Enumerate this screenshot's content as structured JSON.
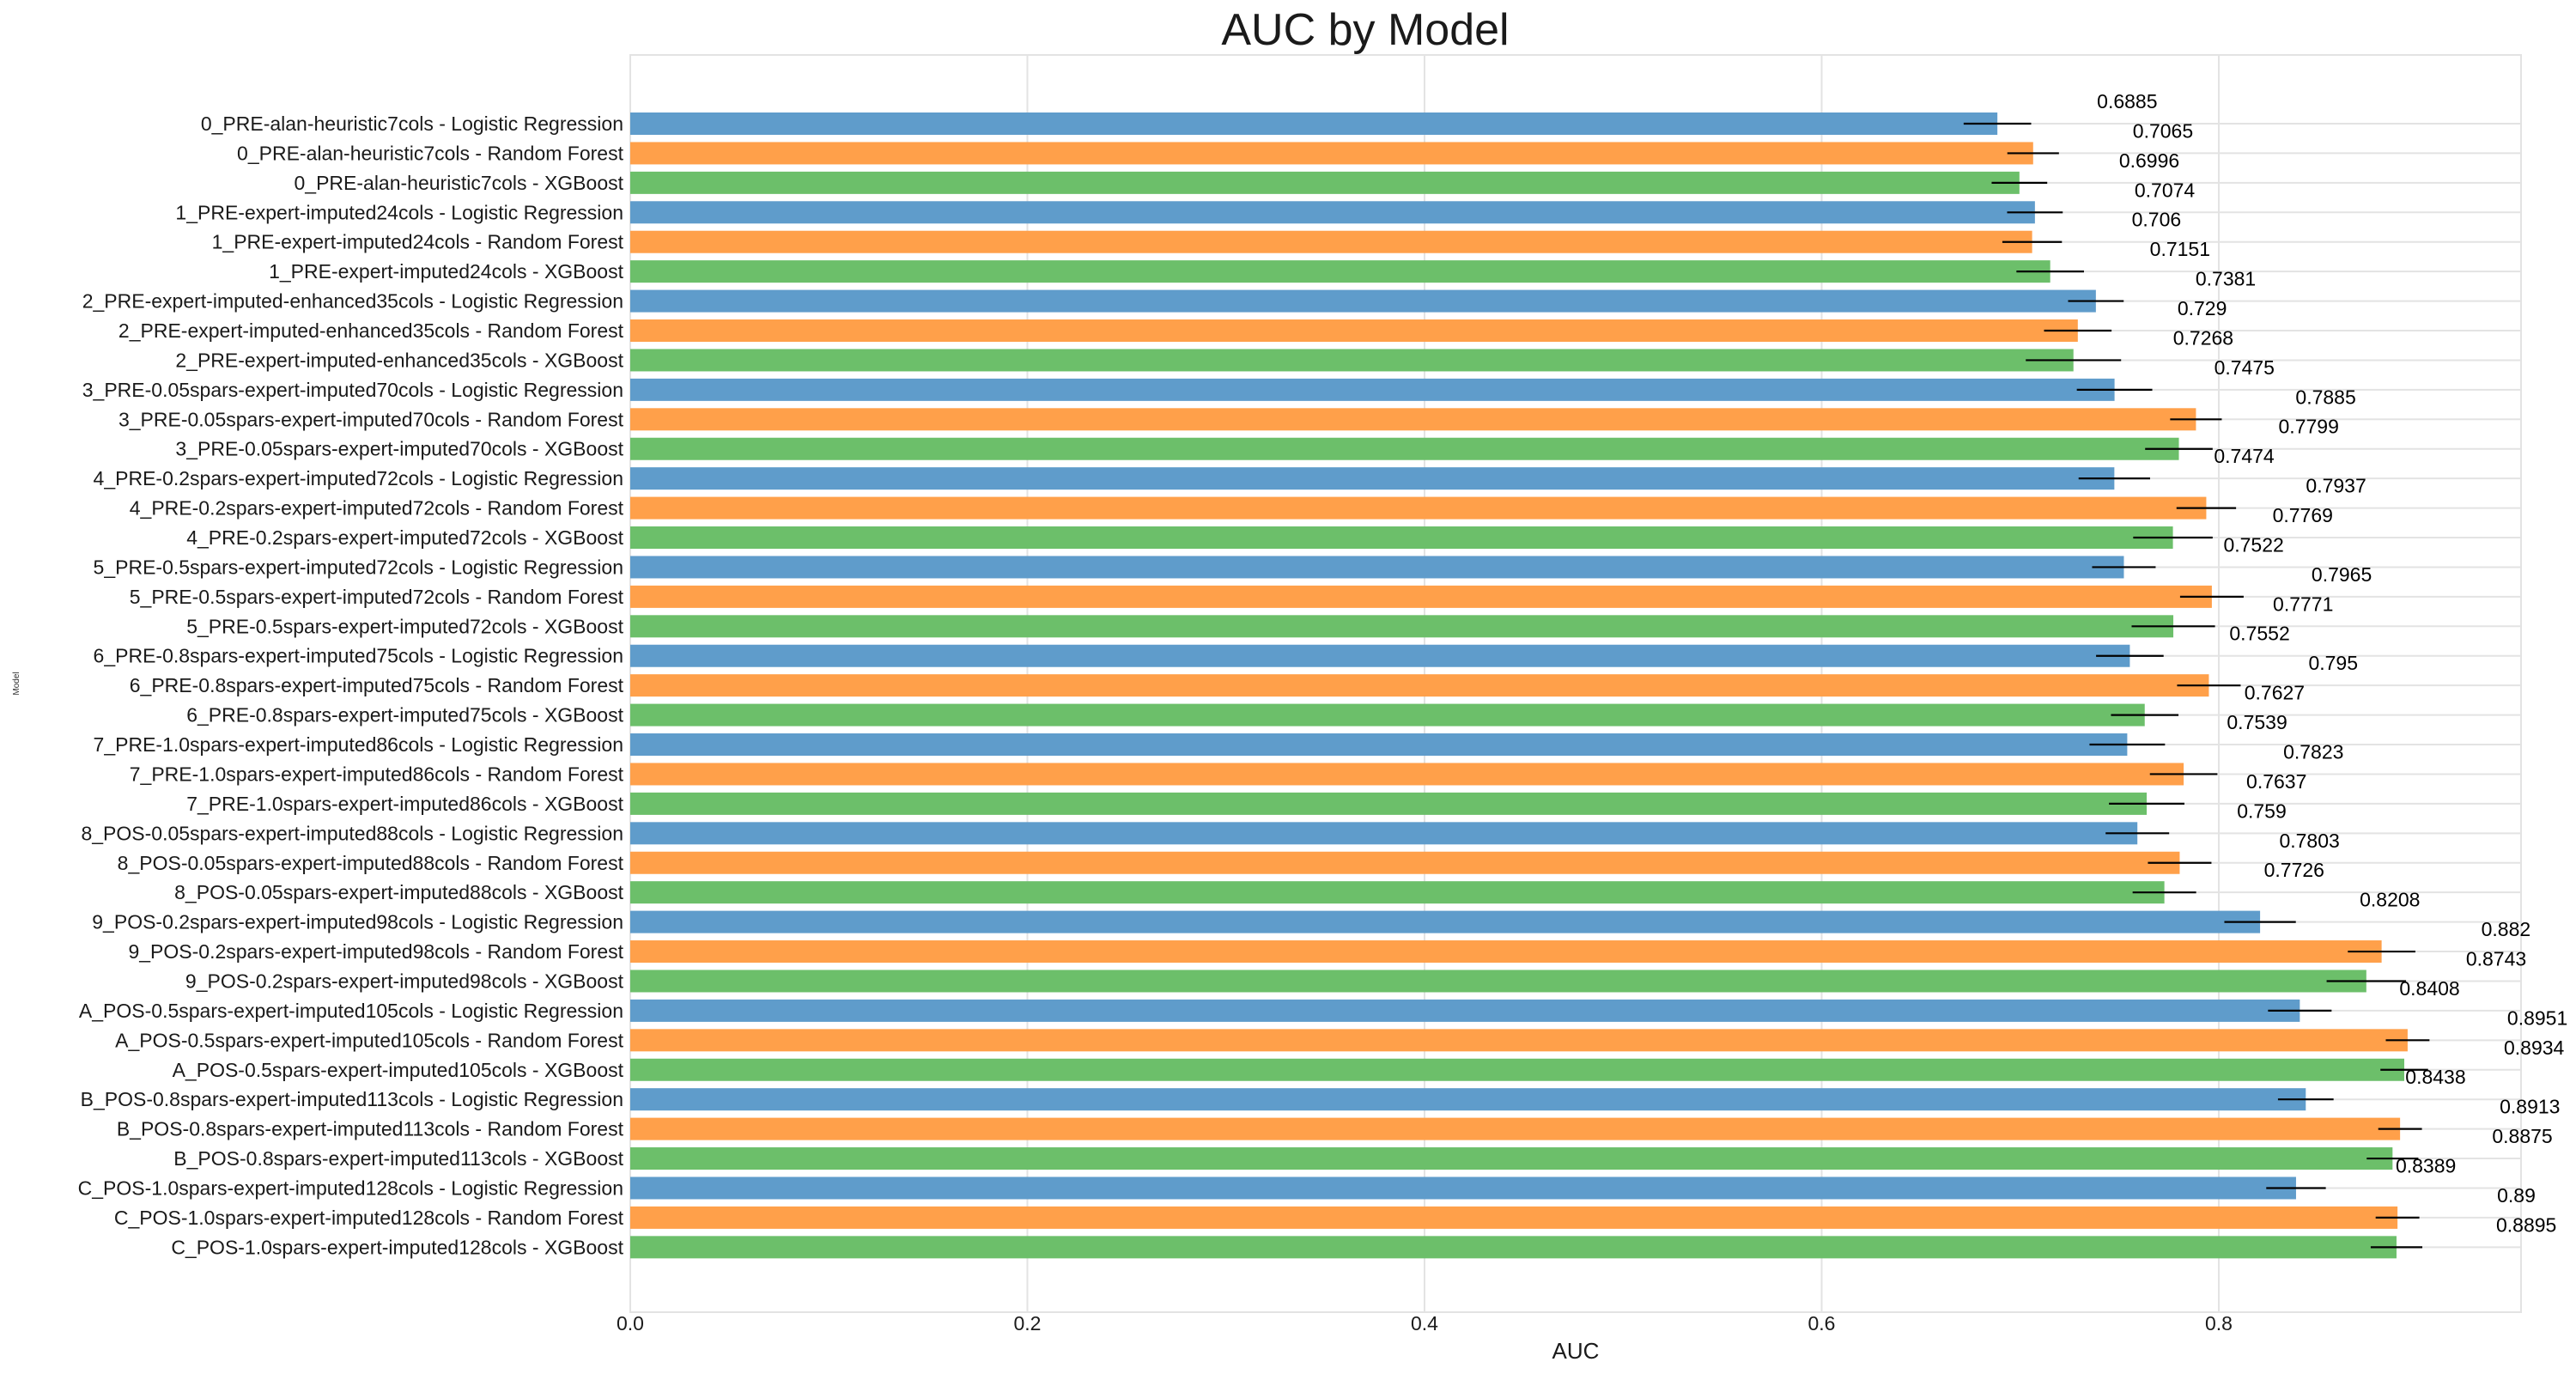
{
  "chart_data": {
    "type": "bar",
    "orientation": "horizontal",
    "title": "AUC by Model",
    "xlabel": "AUC",
    "ylabel": "Model",
    "xlim": [
      0,
      0.95
    ],
    "xticks": [
      0.0,
      0.2,
      0.4,
      0.6,
      0.8
    ],
    "xtick_labels": [
      "0.0",
      "0.2",
      "0.4",
      "0.6",
      "0.8"
    ],
    "grid": true,
    "colors": {
      "Logistic Regression": "#5f9ccb",
      "Random Forest": "#ffa04a",
      "XGBoost": "#6cbf6a"
    },
    "categories": [
      "0_PRE-alan-heuristic7cols - Logistic Regression",
      "0_PRE-alan-heuristic7cols - Random Forest",
      "0_PRE-alan-heuristic7cols - XGBoost",
      "1_PRE-expert-imputed24cols - Logistic Regression",
      "1_PRE-expert-imputed24cols - Random Forest",
      "1_PRE-expert-imputed24cols - XGBoost",
      "2_PRE-expert-imputed-enhanced35cols - Logistic Regression",
      "2_PRE-expert-imputed-enhanced35cols - Random Forest",
      "2_PRE-expert-imputed-enhanced35cols - XGBoost",
      "3_PRE-0.05spars-expert-imputed70cols - Logistic Regression",
      "3_PRE-0.05spars-expert-imputed70cols - Random Forest",
      "3_PRE-0.05spars-expert-imputed70cols - XGBoost",
      "4_PRE-0.2spars-expert-imputed72cols - Logistic Regression",
      "4_PRE-0.2spars-expert-imputed72cols - Random Forest",
      "4_PRE-0.2spars-expert-imputed72cols - XGBoost",
      "5_PRE-0.5spars-expert-imputed72cols - Logistic Regression",
      "5_PRE-0.5spars-expert-imputed72cols - Random Forest",
      "5_PRE-0.5spars-expert-imputed72cols - XGBoost",
      "6_PRE-0.8spars-expert-imputed75cols - Logistic Regression",
      "6_PRE-0.8spars-expert-imputed75cols - Random Forest",
      "6_PRE-0.8spars-expert-imputed75cols - XGBoost",
      "7_PRE-1.0spars-expert-imputed86cols - Logistic Regression",
      "7_PRE-1.0spars-expert-imputed86cols - Random Forest",
      "7_PRE-1.0spars-expert-imputed86cols - XGBoost",
      "8_POS-0.05spars-expert-imputed88cols - Logistic Regression",
      "8_POS-0.05spars-expert-imputed88cols - Random Forest",
      "8_POS-0.05spars-expert-imputed88cols - XGBoost",
      "9_POS-0.2spars-expert-imputed98cols - Logistic Regression",
      "9_POS-0.2spars-expert-imputed98cols - Random Forest",
      "9_POS-0.2spars-expert-imputed98cols - XGBoost",
      "A_POS-0.5spars-expert-imputed105cols - Logistic Regression",
      "A_POS-0.5spars-expert-imputed105cols - Random Forest",
      "A_POS-0.5spars-expert-imputed105cols - XGBoost",
      "B_POS-0.8spars-expert-imputed113cols - Logistic Regression",
      "B_POS-0.8spars-expert-imputed113cols - Random Forest",
      "B_POS-0.8spars-expert-imputed113cols - XGBoost",
      "C_POS-1.0spars-expert-imputed128cols - Logistic Regression",
      "C_POS-1.0spars-expert-imputed128cols - Random Forest",
      "C_POS-1.0spars-expert-imputed128cols - XGBoost"
    ],
    "values": [
      0.6885,
      0.7065,
      0.6996,
      0.7074,
      0.706,
      0.7151,
      0.7381,
      0.729,
      0.7268,
      0.7475,
      0.7885,
      0.7799,
      0.7474,
      0.7937,
      0.7769,
      0.7522,
      0.7965,
      0.7771,
      0.7552,
      0.795,
      0.7627,
      0.7539,
      0.7823,
      0.7637,
      0.759,
      0.7803,
      0.7726,
      0.8208,
      0.882,
      0.8743,
      0.8408,
      0.8951,
      0.8934,
      0.8438,
      0.8913,
      0.8875,
      0.8389,
      0.89,
      0.8895
    ],
    "value_labels": [
      "0.6885",
      "0.7065",
      "0.6996",
      "0.7074",
      "0.706",
      "0.7151",
      "0.7381",
      "0.729",
      "0.7268",
      "0.7475",
      "0.7885",
      "0.7799",
      "0.7474",
      "0.7937",
      "0.7769",
      "0.7522",
      "0.7965",
      "0.7771",
      "0.7552",
      "0.795",
      "0.7627",
      "0.7539",
      "0.7823",
      "0.7637",
      "0.759",
      "0.7803",
      "0.7726",
      "0.8208",
      "0.882",
      "0.8743",
      "0.8408",
      "0.8951",
      "0.8934",
      "0.8438",
      "0.8913",
      "0.8875",
      "0.8389",
      "0.89",
      "0.8895"
    ],
    "errors": [
      0.017,
      0.013,
      0.014,
      0.014,
      0.015,
      0.017,
      0.014,
      0.017,
      0.024,
      0.019,
      0.013,
      0.017,
      0.018,
      0.015,
      0.02,
      0.016,
      0.016,
      0.021,
      0.017,
      0.016,
      0.017,
      0.019,
      0.017,
      0.019,
      0.016,
      0.016,
      0.016,
      0.018,
      0.017,
      0.02,
      0.016,
      0.011,
      0.012,
      0.014,
      0.011,
      0.013,
      0.015,
      0.011,
      0.013
    ]
  }
}
